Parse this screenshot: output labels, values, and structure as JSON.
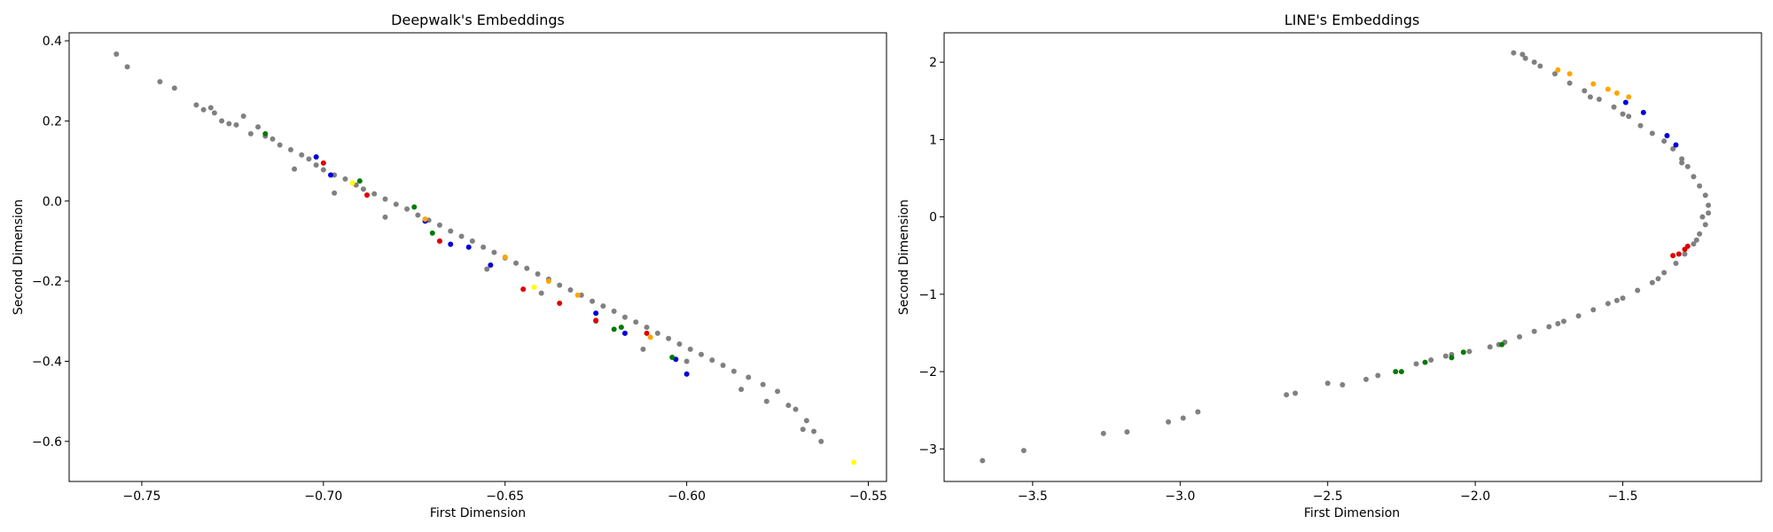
{
  "chart_data": [
    {
      "type": "scatter",
      "title": "Deepwalk's Embeddings",
      "xlabel": "First Dimension",
      "ylabel": "Second Dimension",
      "xlim": [
        -0.77,
        -0.545
      ],
      "ylim": [
        -0.7,
        0.42
      ],
      "xticks": [
        -0.75,
        -0.7,
        -0.65,
        -0.6,
        -0.55
      ],
      "xtick_labels": [
        "−0.75",
        "−0.70",
        "−0.65",
        "−0.60",
        "−0.55"
      ],
      "yticks": [
        0.4,
        0.2,
        0.0,
        -0.2,
        -0.4,
        -0.6
      ],
      "ytick_labels": [
        "0.4",
        "0.2",
        "0.0",
        "−0.2",
        "−0.4",
        "−0.6"
      ],
      "grid": false,
      "colors": {
        "gray": "#808080",
        "red": "#e00000",
        "blue": "#0000d8",
        "green": "#007a00",
        "orange": "#ffa500",
        "yellow": "#ffff00"
      },
      "series": [
        {
          "color": "gray",
          "points": [
            [
              -0.757,
              0.367
            ],
            [
              -0.754,
              0.335
            ],
            [
              -0.745,
              0.298
            ],
            [
              -0.741,
              0.282
            ],
            [
              -0.735,
              0.24
            ],
            [
              -0.733,
              0.228
            ],
            [
              -0.731,
              0.233
            ],
            [
              -0.73,
              0.22
            ],
            [
              -0.728,
              0.2
            ],
            [
              -0.726,
              0.193
            ],
            [
              -0.724,
              0.19
            ],
            [
              -0.722,
              0.212
            ],
            [
              -0.72,
              0.168
            ],
            [
              -0.718,
              0.185
            ],
            [
              -0.716,
              0.162
            ],
            [
              -0.714,
              0.155
            ],
            [
              -0.712,
              0.14
            ],
            [
              -0.709,
              0.128
            ],
            [
              -0.706,
              0.115
            ],
            [
              -0.704,
              0.105
            ],
            [
              -0.702,
              0.09
            ],
            [
              -0.7,
              0.078
            ],
            [
              -0.697,
              0.065
            ],
            [
              -0.694,
              0.055
            ],
            [
              -0.691,
              0.04
            ],
            [
              -0.689,
              0.03
            ],
            [
              -0.686,
              0.018
            ],
            [
              -0.683,
              0.005
            ],
            [
              -0.68,
              -0.008
            ],
            [
              -0.677,
              -0.02
            ],
            [
              -0.674,
              -0.035
            ],
            [
              -0.671,
              -0.048
            ],
            [
              -0.668,
              -0.06
            ],
            [
              -0.665,
              -0.075
            ],
            [
              -0.662,
              -0.088
            ],
            [
              -0.659,
              -0.1
            ],
            [
              -0.656,
              -0.115
            ],
            [
              -0.653,
              -0.128
            ],
            [
              -0.65,
              -0.142
            ],
            [
              -0.647,
              -0.155
            ],
            [
              -0.644,
              -0.168
            ],
            [
              -0.641,
              -0.182
            ],
            [
              -0.638,
              -0.195
            ],
            [
              -0.635,
              -0.21
            ],
            [
              -0.632,
              -0.222
            ],
            [
              -0.629,
              -0.235
            ],
            [
              -0.626,
              -0.25
            ],
            [
              -0.623,
              -0.262
            ],
            [
              -0.62,
              -0.275
            ],
            [
              -0.617,
              -0.29
            ],
            [
              -0.614,
              -0.302
            ],
            [
              -0.611,
              -0.315
            ],
            [
              -0.608,
              -0.33
            ],
            [
              -0.605,
              -0.343
            ],
            [
              -0.602,
              -0.357
            ],
            [
              -0.599,
              -0.37
            ],
            [
              -0.596,
              -0.383
            ],
            [
              -0.593,
              -0.397
            ],
            [
              -0.59,
              -0.41
            ],
            [
              -0.587,
              -0.425
            ],
            [
              -0.583,
              -0.44
            ],
            [
              -0.579,
              -0.458
            ],
            [
              -0.575,
              -0.475
            ],
            [
              -0.572,
              -0.51
            ],
            [
              -0.57,
              -0.52
            ],
            [
              -0.567,
              -0.548
            ],
            [
              -0.565,
              -0.575
            ],
            [
              -0.563,
              -0.6
            ],
            [
              -0.568,
              -0.57
            ],
            [
              -0.578,
              -0.5
            ],
            [
              -0.585,
              -0.47
            ],
            [
              -0.6,
              -0.4
            ],
            [
              -0.612,
              -0.37
            ],
            [
              -0.625,
              -0.3
            ],
            [
              -0.64,
              -0.23
            ],
            [
              -0.655,
              -0.17
            ],
            [
              -0.668,
              -0.1
            ],
            [
              -0.683,
              -0.04
            ],
            [
              -0.697,
              0.02
            ],
            [
              -0.708,
              0.08
            ]
          ]
        },
        {
          "color": "red",
          "points": [
            [
              -0.7,
              0.095
            ],
            [
              -0.688,
              0.015
            ],
            [
              -0.668,
              -0.1
            ],
            [
              -0.645,
              -0.22
            ],
            [
              -0.635,
              -0.255
            ],
            [
              -0.625,
              -0.298
            ],
            [
              -0.611,
              -0.33
            ]
          ]
        },
        {
          "color": "blue",
          "points": [
            [
              -0.702,
              0.11
            ],
            [
              -0.698,
              0.065
            ],
            [
              -0.672,
              -0.05
            ],
            [
              -0.665,
              -0.108
            ],
            [
              -0.66,
              -0.115
            ],
            [
              -0.654,
              -0.16
            ],
            [
              -0.625,
              -0.28
            ],
            [
              -0.617,
              -0.33
            ],
            [
              -0.603,
              -0.395
            ],
            [
              -0.6,
              -0.432
            ]
          ]
        },
        {
          "color": "green",
          "points": [
            [
              -0.716,
              0.168
            ],
            [
              -0.69,
              0.05
            ],
            [
              -0.675,
              -0.015
            ],
            [
              -0.67,
              -0.08
            ],
            [
              -0.62,
              -0.32
            ],
            [
              -0.618,
              -0.315
            ],
            [
              -0.604,
              -0.39
            ]
          ]
        },
        {
          "color": "orange",
          "points": [
            [
              -0.672,
              -0.045
            ],
            [
              -0.65,
              -0.14
            ],
            [
              -0.638,
              -0.2
            ],
            [
              -0.63,
              -0.235
            ],
            [
              -0.61,
              -0.34
            ]
          ]
        },
        {
          "color": "yellow",
          "points": [
            [
              -0.692,
              0.045
            ],
            [
              -0.642,
              -0.215
            ],
            [
              -0.554,
              -0.652
            ]
          ]
        }
      ]
    },
    {
      "type": "scatter",
      "title": "LINE's Embeddings",
      "xlabel": "First Dimension",
      "ylabel": "Second Dimension",
      "xlim": [
        -3.8,
        -1.03
      ],
      "ylim": [
        -3.42,
        2.38
      ],
      "xticks": [
        -3.5,
        -3.0,
        -2.5,
        -2.0,
        -1.5
      ],
      "xtick_labels": [
        "−3.5",
        "−3.0",
        "−2.5",
        "−2.0",
        "−1.5"
      ],
      "yticks": [
        2,
        1,
        0,
        -1,
        -2,
        -3
      ],
      "ytick_labels": [
        "2",
        "1",
        "0",
        "−1",
        "−2",
        "−3"
      ],
      "grid": false,
      "colors": {
        "gray": "#808080",
        "red": "#e00000",
        "blue": "#0000d8",
        "green": "#007a00",
        "orange": "#ffa500"
      },
      "series": [
        {
          "color": "gray",
          "points": [
            [
              -3.67,
              -3.15
            ],
            [
              -3.53,
              -3.02
            ],
            [
              -3.26,
              -2.8
            ],
            [
              -3.18,
              -2.78
            ],
            [
              -3.04,
              -2.65
            ],
            [
              -2.99,
              -2.6
            ],
            [
              -2.94,
              -2.52
            ],
            [
              -2.64,
              -2.3
            ],
            [
              -2.61,
              -2.28
            ],
            [
              -2.5,
              -2.15
            ],
            [
              -2.45,
              -2.17
            ],
            [
              -2.37,
              -2.1
            ],
            [
              -2.33,
              -2.05
            ],
            [
              -2.2,
              -1.9
            ],
            [
              -2.15,
              -1.85
            ],
            [
              -2.1,
              -1.8
            ],
            [
              -2.02,
              -1.74
            ],
            [
              -1.95,
              -1.68
            ],
            [
              -1.9,
              -1.62
            ],
            [
              -1.85,
              -1.55
            ],
            [
              -1.8,
              -1.48
            ],
            [
              -1.75,
              -1.42
            ],
            [
              -1.7,
              -1.35
            ],
            [
              -1.65,
              -1.28
            ],
            [
              -1.6,
              -1.2
            ],
            [
              -1.55,
              -1.12
            ],
            [
              -1.5,
              -1.05
            ],
            [
              -1.45,
              -0.95
            ],
            [
              -1.4,
              -0.85
            ],
            [
              -1.36,
              -0.72
            ],
            [
              -1.32,
              -0.6
            ],
            [
              -1.29,
              -0.48
            ],
            [
              -1.26,
              -0.35
            ],
            [
              -1.24,
              -0.22
            ],
            [
              -1.22,
              -0.1
            ],
            [
              -1.21,
              0.05
            ],
            [
              -1.21,
              0.15
            ],
            [
              -1.22,
              0.28
            ],
            [
              -1.24,
              0.4
            ],
            [
              -1.26,
              0.52
            ],
            [
              -1.28,
              0.65
            ],
            [
              -1.3,
              0.75
            ],
            [
              -1.33,
              0.88
            ],
            [
              -1.36,
              0.98
            ],
            [
              -1.4,
              1.08
            ],
            [
              -1.44,
              1.18
            ],
            [
              -1.48,
              1.3
            ],
            [
              -1.53,
              1.42
            ],
            [
              -1.58,
              1.52
            ],
            [
              -1.63,
              1.63
            ],
            [
              -1.68,
              1.73
            ],
            [
              -1.73,
              1.85
            ],
            [
              -1.78,
              1.95
            ],
            [
              -1.83,
              2.05
            ],
            [
              -1.87,
              2.12
            ],
            [
              -1.84,
              2.1
            ],
            [
              -1.8,
              2.0
            ],
            [
              -1.61,
              1.55
            ],
            [
              -1.5,
              1.33
            ],
            [
              -1.3,
              0.7
            ],
            [
              -1.23,
              0.0
            ],
            [
              -1.25,
              -0.3
            ],
            [
              -1.38,
              -0.8
            ],
            [
              -1.52,
              -1.08
            ],
            [
              -1.72,
              -1.38
            ],
            [
              -1.92,
              -1.65
            ],
            [
              -2.08,
              -1.78
            ]
          ]
        },
        {
          "color": "orange",
          "points": [
            [
              -1.72,
              1.9
            ],
            [
              -1.68,
              1.85
            ],
            [
              -1.6,
              1.72
            ],
            [
              -1.55,
              1.65
            ],
            [
              -1.52,
              1.6
            ],
            [
              -1.48,
              1.55
            ]
          ]
        },
        {
          "color": "blue",
          "points": [
            [
              -1.49,
              1.48
            ],
            [
              -1.43,
              1.35
            ],
            [
              -1.35,
              1.05
            ],
            [
              -1.32,
              0.93
            ]
          ]
        },
        {
          "color": "red",
          "points": [
            [
              -1.33,
              -0.5
            ],
            [
              -1.31,
              -0.48
            ],
            [
              -1.29,
              -0.42
            ],
            [
              -1.28,
              -0.38
            ]
          ]
        },
        {
          "color": "green",
          "points": [
            [
              -2.27,
              -2.0
            ],
            [
              -2.25,
              -2.0
            ],
            [
              -2.17,
              -1.88
            ],
            [
              -2.08,
              -1.82
            ],
            [
              -2.04,
              -1.75
            ],
            [
              -1.91,
              -1.65
            ]
          ]
        }
      ]
    }
  ]
}
